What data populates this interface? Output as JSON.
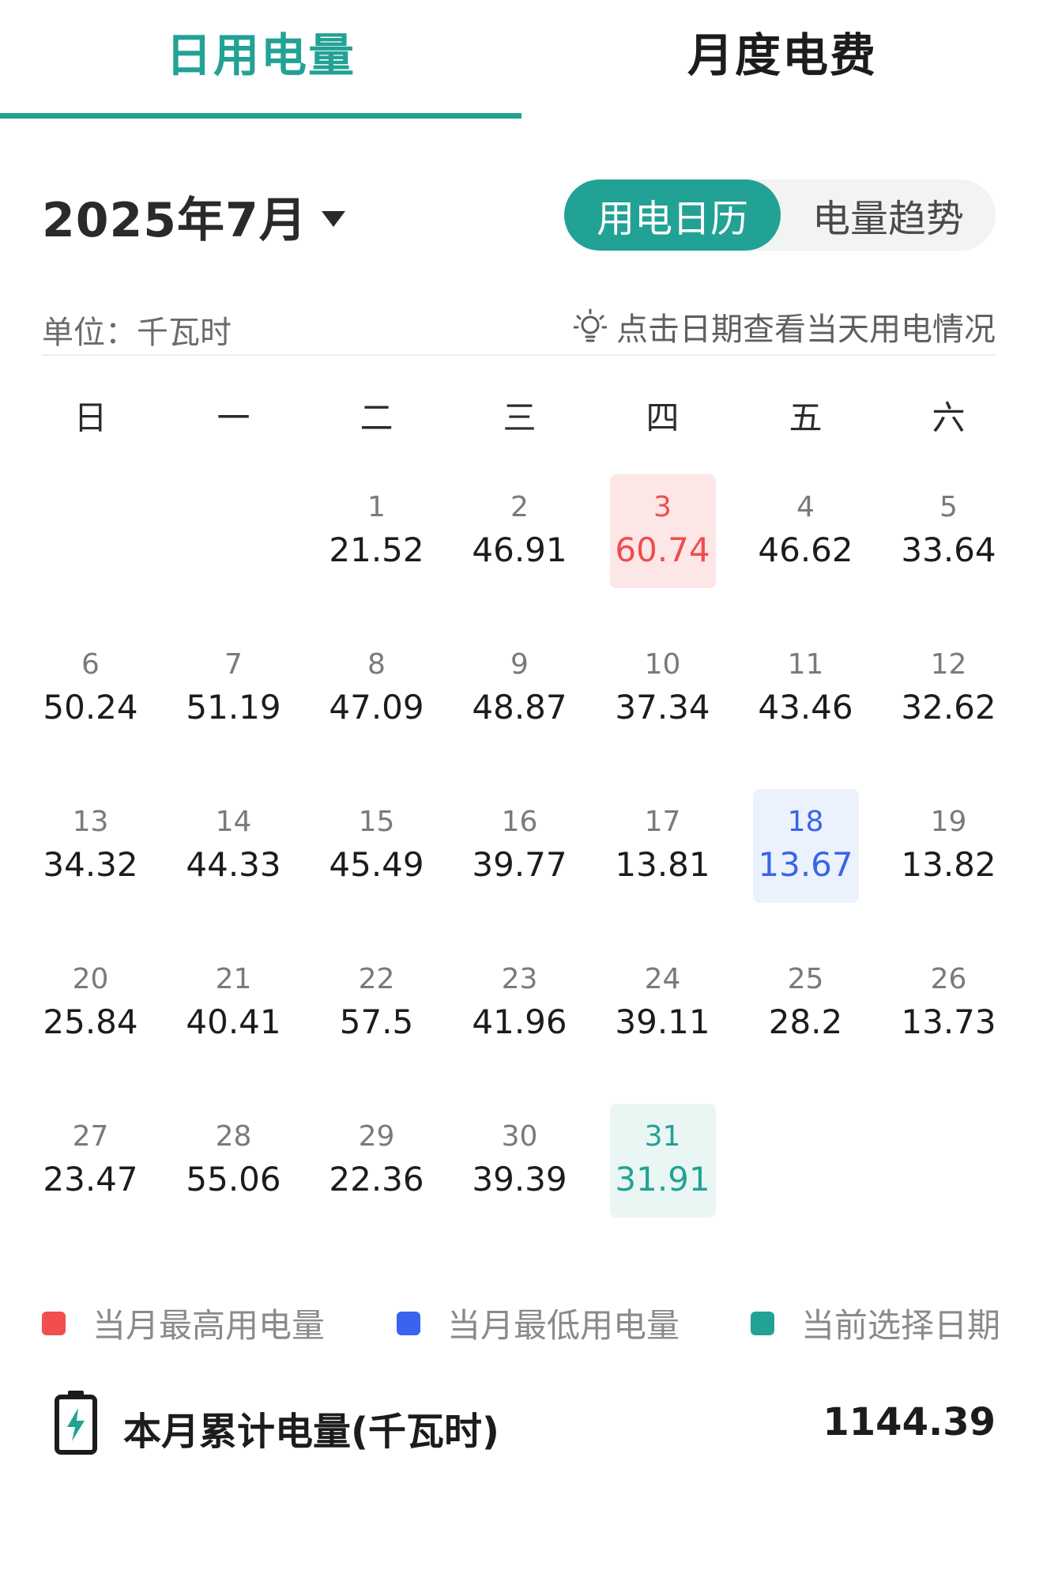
{
  "tabs": [
    {
      "label": "日用电量",
      "active": true
    },
    {
      "label": "月度电费",
      "active": false
    }
  ],
  "header": {
    "month": "2025年7月",
    "toggle": {
      "calendar": "用电日历",
      "trend": "电量趋势"
    }
  },
  "info": {
    "unit": "单位：千瓦时",
    "hint": "点击日期查看当天用电情况"
  },
  "weekdays": [
    "日",
    "一",
    "二",
    "三",
    "四",
    "五",
    "六"
  ],
  "calendar": {
    "leading_blanks": 2,
    "days": [
      {
        "day": "1",
        "value": "21.52"
      },
      {
        "day": "2",
        "value": "46.91"
      },
      {
        "day": "3",
        "value": "60.74",
        "state": "max"
      },
      {
        "day": "4",
        "value": "46.62"
      },
      {
        "day": "5",
        "value": "33.64"
      },
      {
        "day": "6",
        "value": "50.24"
      },
      {
        "day": "7",
        "value": "51.19"
      },
      {
        "day": "8",
        "value": "47.09"
      },
      {
        "day": "9",
        "value": "48.87"
      },
      {
        "day": "10",
        "value": "37.34"
      },
      {
        "day": "11",
        "value": "43.46"
      },
      {
        "day": "12",
        "value": "32.62"
      },
      {
        "day": "13",
        "value": "34.32"
      },
      {
        "day": "14",
        "value": "44.33"
      },
      {
        "day": "15",
        "value": "45.49"
      },
      {
        "day": "16",
        "value": "39.77"
      },
      {
        "day": "17",
        "value": "13.81"
      },
      {
        "day": "18",
        "value": "13.67",
        "state": "min"
      },
      {
        "day": "19",
        "value": "13.82"
      },
      {
        "day": "20",
        "value": "25.84"
      },
      {
        "day": "21",
        "value": "40.41"
      },
      {
        "day": "22",
        "value": "57.5"
      },
      {
        "day": "23",
        "value": "41.96"
      },
      {
        "day": "24",
        "value": "39.11"
      },
      {
        "day": "25",
        "value": "28.2"
      },
      {
        "day": "26",
        "value": "13.73"
      },
      {
        "day": "27",
        "value": "23.47"
      },
      {
        "day": "28",
        "value": "55.06"
      },
      {
        "day": "29",
        "value": "22.36"
      },
      {
        "day": "30",
        "value": "39.39"
      },
      {
        "day": "31",
        "value": "31.91",
        "state": "sel"
      }
    ]
  },
  "legend": [
    {
      "label": "当月最高用电量",
      "color": "#f24e4e"
    },
    {
      "label": "当月最低用电量",
      "color": "#3a63ef"
    },
    {
      "label": "当前选择日期",
      "color": "#22a295"
    }
  ],
  "total": {
    "label": "本月累计电量(千瓦时)",
    "value": "1144.39"
  }
}
